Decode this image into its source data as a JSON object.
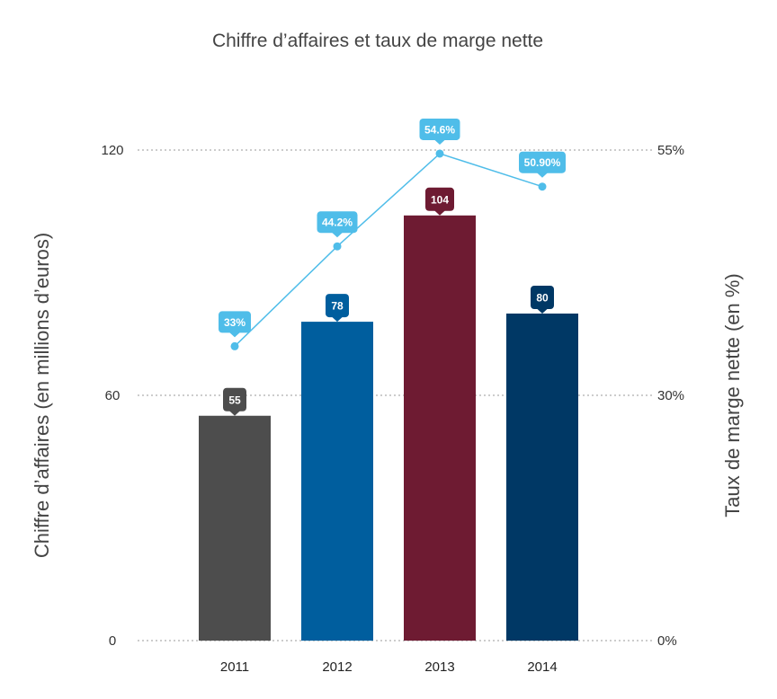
{
  "chart_data": {
    "type": "bar",
    "title": "Chiffre d’affaires et taux de marge nette",
    "categories": [
      "2011",
      "2012",
      "2013",
      "2014"
    ],
    "ylabel": "Chiffre d’affaires (en millions d’euros)",
    "y2label": "Taux de marge nette (en %)",
    "ylim": [
      0,
      120
    ],
    "y2lim": [
      0,
      55
    ],
    "yticks": [
      "0",
      "60",
      "120"
    ],
    "y2ticks": [
      "0%",
      "30%",
      "55%"
    ],
    "grid": true,
    "series": [
      {
        "type": "bar",
        "values": [
          55,
          78,
          104,
          80
        ],
        "labels": [
          "55",
          "78",
          "104",
          "80"
        ],
        "colors": [
          "#4d4d4d",
          "#005e9e",
          "#6e1b32",
          "#003865"
        ]
      },
      {
        "type": "line",
        "axis": "right",
        "values": [
          33,
          44.2,
          54.6,
          50.9
        ],
        "labels": [
          "33%",
          "44.2%",
          "54.6%",
          "50.90%"
        ],
        "color": "#4fbde9"
      }
    ]
  }
}
